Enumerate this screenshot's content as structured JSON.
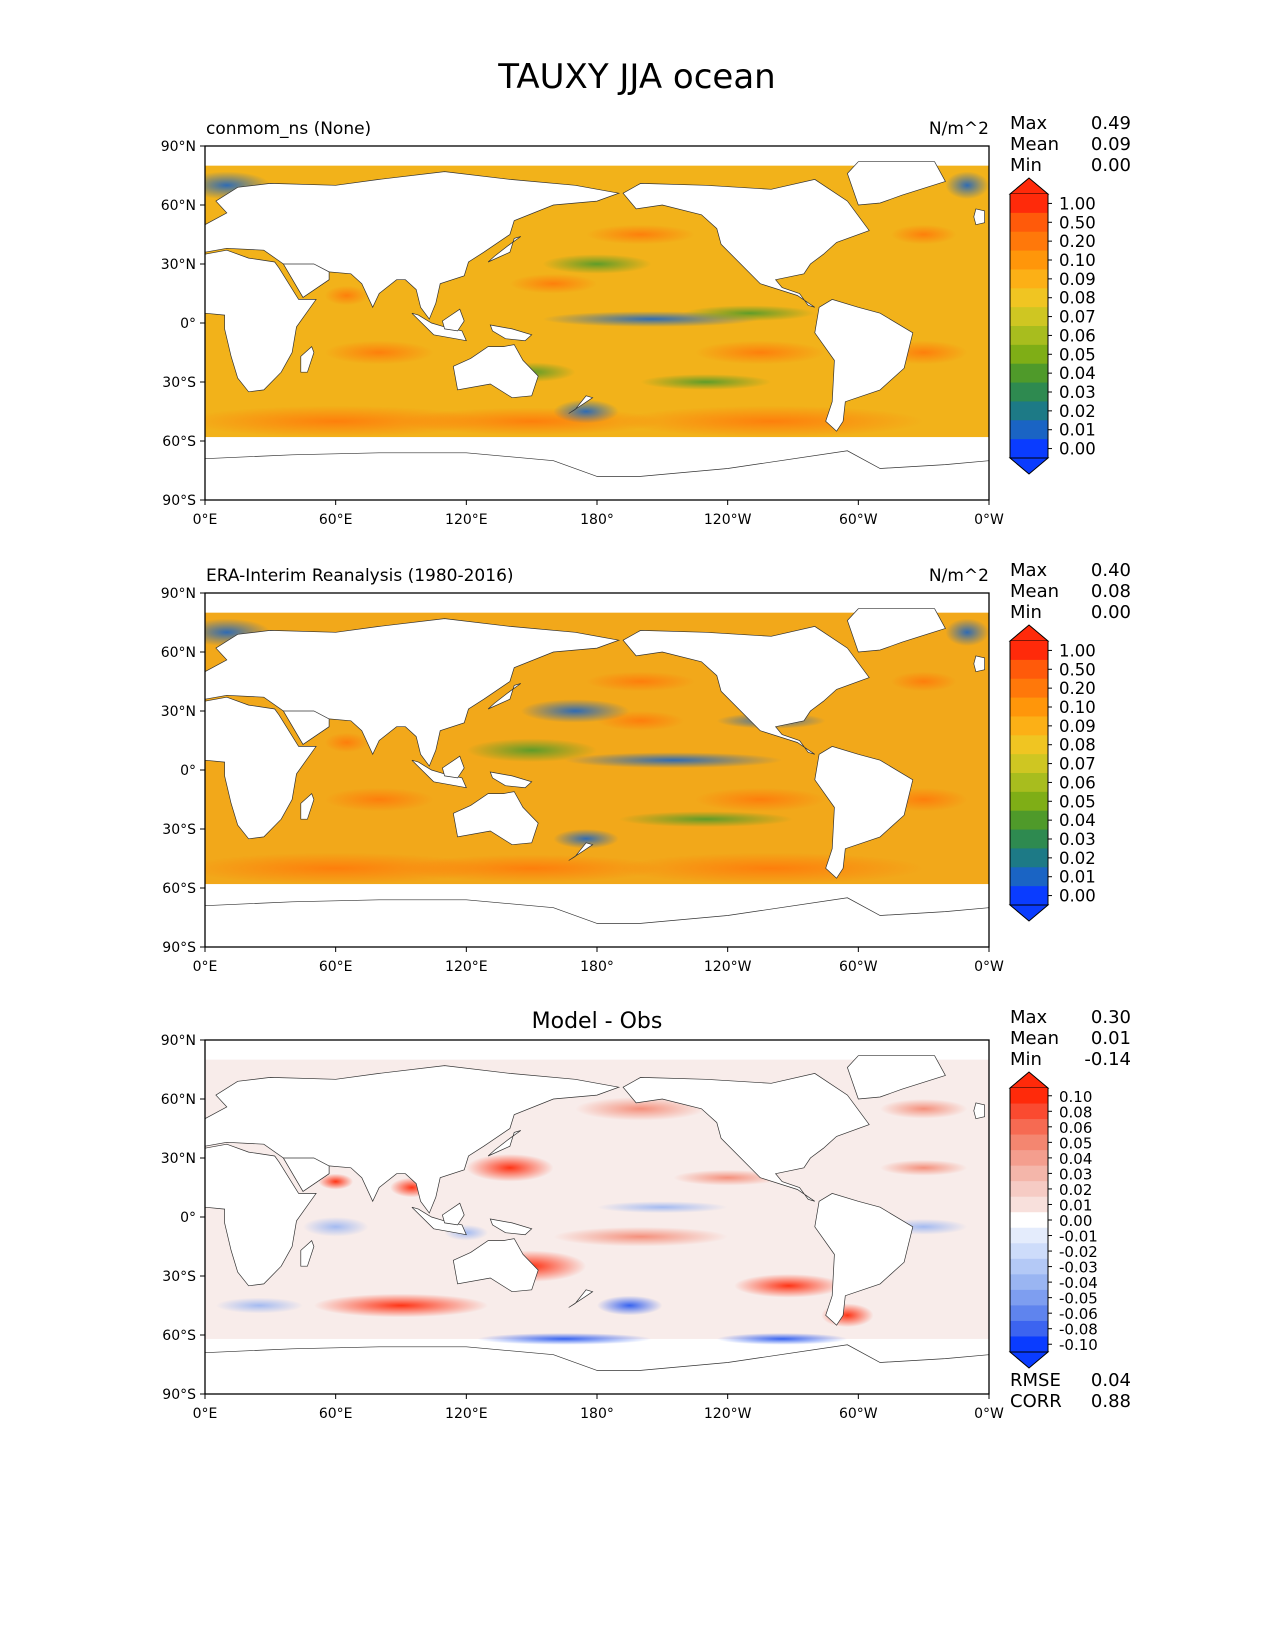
{
  "chart_data": {
    "type": "heatmap",
    "title": "TAUXY JJA ocean",
    "x_ticks": [
      "0°E",
      "60°E",
      "120°E",
      "180°",
      "120°W",
      "60°W",
      "0°W"
    ],
    "y_ticks": [
      "90°N",
      "60°N",
      "30°N",
      "0°",
      "30°S",
      "60°S",
      "90°S"
    ],
    "xlim": [
      0,
      360
    ],
    "ylim": [
      -90,
      90
    ],
    "panels": [
      {
        "id": "model",
        "left_title": "conmom_ns (None)",
        "center_title": "",
        "units": "N/m^2",
        "stats": [
          {
            "label": "Max",
            "value": "0.49"
          },
          {
            "label": "Mean",
            "value": "0.09"
          },
          {
            "label": "Min",
            "value": "0.00"
          }
        ],
        "colorbar": {
          "levels": [
            "1.00",
            "0.50",
            "0.20",
            "0.10",
            "0.09",
            "0.08",
            "0.07",
            "0.06",
            "0.05",
            "0.04",
            "0.03",
            "0.02",
            "0.01",
            "0.00"
          ],
          "colors": [
            "#ff2a0a",
            "#ff5a0a",
            "#ff780a",
            "#ff960a",
            "#fcb016",
            "#f0c522",
            "#cfc622",
            "#a8bd1e",
            "#7fae16",
            "#4f9a2a",
            "#2e8a50",
            "#1d7a86",
            "#1a64c4",
            "#0a3cff"
          ],
          "top_color": "#ff2a0a",
          "bottom_color": "#0a3cff"
        }
      },
      {
        "id": "obs",
        "left_title": "ERA-Interim Reanalysis (1980-2016)",
        "center_title": "",
        "units": "N/m^2",
        "stats": [
          {
            "label": "Max",
            "value": "0.40"
          },
          {
            "label": "Mean",
            "value": "0.08"
          },
          {
            "label": "Min",
            "value": "0.00"
          }
        ],
        "colorbar": {
          "levels": [
            "1.00",
            "0.50",
            "0.20",
            "0.10",
            "0.09",
            "0.08",
            "0.07",
            "0.06",
            "0.05",
            "0.04",
            "0.03",
            "0.02",
            "0.01",
            "0.00"
          ],
          "colors": [
            "#ff2a0a",
            "#ff5a0a",
            "#ff780a",
            "#ff960a",
            "#fcb016",
            "#f0c522",
            "#cfc622",
            "#a8bd1e",
            "#7fae16",
            "#4f9a2a",
            "#2e8a50",
            "#1d7a86",
            "#1a64c4",
            "#0a3cff"
          ],
          "top_color": "#ff2a0a",
          "bottom_color": "#0a3cff"
        }
      },
      {
        "id": "diff",
        "left_title": "",
        "center_title": "Model - Obs",
        "units": "",
        "stats": [
          {
            "label": "Max",
            "value": "0.30"
          },
          {
            "label": "Mean",
            "value": "0.01"
          },
          {
            "label": "Min",
            "value": "-0.14"
          }
        ],
        "extra_stats": [
          {
            "label": "RMSE",
            "value": "0.04"
          },
          {
            "label": "CORR",
            "value": "0.88"
          }
        ],
        "colorbar": {
          "levels": [
            "0.10",
            "0.08",
            "0.06",
            "0.05",
            "0.04",
            "0.03",
            "0.02",
            "0.01",
            "0.00",
            "-0.01",
            "-0.02",
            "-0.03",
            "-0.04",
            "-0.05",
            "-0.06",
            "-0.08",
            "-0.10"
          ],
          "colors": [
            "#ff2a0a",
            "#fa4a30",
            "#f66a52",
            "#f48670",
            "#f49e8e",
            "#f4b6aa",
            "#f6cbc4",
            "#f8e0dc",
            "#ffffff",
            "#e4ecfc",
            "#cddcfa",
            "#b4c9f6",
            "#9ab5f2",
            "#7e9ef0",
            "#5f84ee",
            "#3c64f0",
            "#0a3cff"
          ],
          "top_color": "#ff2a0a",
          "bottom_color": "#0a3cff"
        }
      }
    ]
  }
}
